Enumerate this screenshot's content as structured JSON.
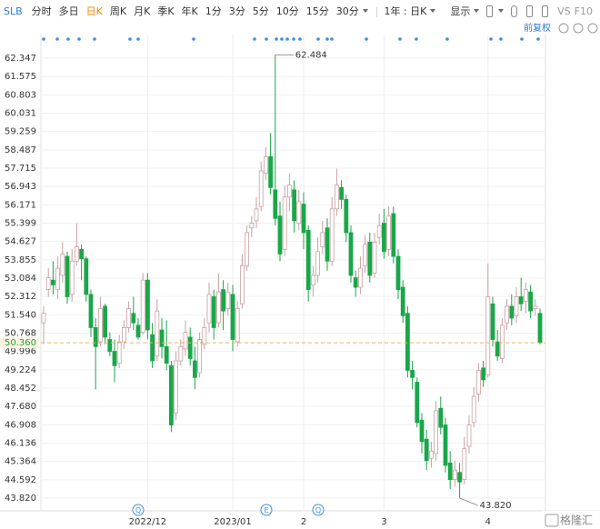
{
  "toolbar": {
    "symbol": "SLB",
    "tabs": [
      "分时",
      "多日",
      "日K",
      "周K",
      "月K",
      "季K",
      "年K",
      "1分",
      "3分",
      "5分",
      "10分",
      "15分",
      "30分"
    ],
    "range": "1年 : 日K",
    "display": "显示",
    "compare": "VS",
    "f10": "F10"
  },
  "watermark": "格隆汇",
  "chart_data": {
    "type": "candlestick",
    "adjust": "前复权",
    "x": [
      null,
      null,
      null,
      null,
      null,
      null,
      null,
      null,
      null,
      null,
      null,
      null,
      null,
      null,
      null,
      null,
      null,
      null,
      null,
      null,
      null,
      null,
      "2022/12",
      null,
      null,
      null,
      null,
      null,
      null,
      null,
      null,
      null,
      null,
      null,
      null,
      null,
      null,
      null,
      null,
      null,
      "2023/01",
      null,
      null,
      null,
      null,
      null,
      null,
      null,
      null,
      null,
      null,
      null,
      null,
      null,
      null,
      "2",
      null,
      null,
      null,
      null,
      null,
      null,
      null,
      null,
      null,
      null,
      null,
      null,
      null,
      null,
      null,
      null,
      "3",
      null,
      null,
      null,
      null,
      null,
      null,
      null,
      null,
      null,
      null,
      null,
      null,
      null,
      null,
      null,
      null,
      null,
      null,
      null,
      null,
      null,
      "4",
      null,
      null,
      null,
      null,
      null,
      null,
      null,
      null,
      null,
      null,
      null
    ],
    "open": [
      51.2,
      52.6,
      53.0,
      52.6,
      53.2,
      54.0,
      52.4,
      53.8,
      54.3,
      53.9,
      52.4,
      51.0,
      50.4,
      51.9,
      50.5,
      50.0,
      49.5,
      50.4,
      51.0,
      51.6,
      51.1,
      50.8,
      53.0,
      50.7,
      49.8,
      50.9,
      50.2,
      49.4,
      47.4,
      49.6,
      50.1,
      50.6,
      49.6,
      49.1,
      50.3,
      51.2,
      52.3,
      51.2,
      52.6,
      51.8,
      52.4,
      50.4,
      52.0,
      53.6,
      55.2,
      55.5,
      56.1,
      57.5,
      58.2,
      56.8,
      55.7,
      54.3,
      56.5,
      56.8,
      55.4,
      56.2,
      55.1,
      52.8,
      53.2,
      54.4,
      55.2,
      53.8,
      56.0,
      56.9,
      56.4,
      55.0,
      53.1,
      52.7,
      53.6,
      54.6,
      53.3,
      54.8,
      55.4,
      54.3,
      55.8,
      54.0,
      52.7,
      51.6,
      49.2,
      48.7,
      47.1,
      46.3,
      45.5,
      45.7,
      47.6,
      46.9,
      45.3,
      44.6,
      44.9,
      44.6,
      46.0,
      47.0,
      48.2,
      49.3,
      49.0,
      52.0,
      50.4,
      49.7,
      51.2,
      51.9,
      51.5,
      52.3,
      52.1,
      52.5,
      51.8,
      51.6
    ],
    "high": [
      51.9,
      53.5,
      53.8,
      54.0,
      54.6,
      54.2,
      54.3,
      55.4,
      54.5,
      54.0,
      52.6,
      51.4,
      52.3,
      52.0,
      50.8,
      50.5,
      50.7,
      51.3,
      52.1,
      52.3,
      51.4,
      53.3,
      53.3,
      51.2,
      52.2,
      51.4,
      51.3,
      49.6,
      50.0,
      50.5,
      51.3,
      51.0,
      50.2,
      50.8,
      51.4,
      52.9,
      52.6,
      53.3,
      53.0,
      52.9,
      52.8,
      52.1,
      54.1,
      55.3,
      55.7,
      56.5,
      58.0,
      58.6,
      59.2,
      62.484,
      56.3,
      57.0,
      57.5,
      57.2,
      56.8,
      56.7,
      55.3,
      53.6,
      54.8,
      55.5,
      55.6,
      56.5,
      57.7,
      57.2,
      56.6,
      55.3,
      53.4,
      54.0,
      54.9,
      55.0,
      55.0,
      55.8,
      56.0,
      56.1,
      56.1,
      54.3,
      53.0,
      51.9,
      49.6,
      48.9,
      47.4,
      46.7,
      46.2,
      47.9,
      48.1,
      47.2,
      45.8,
      45.4,
      45.3,
      46.4,
      47.3,
      48.5,
      49.5,
      49.6,
      53.7,
      52.3,
      50.9,
      51.4,
      52.2,
      52.4,
      52.7,
      53.1,
      52.9,
      52.8,
      52.2,
      51.8
    ],
    "low": [
      50.3,
      52.3,
      52.4,
      52.2,
      52.9,
      52.0,
      52.1,
      53.6,
      53.0,
      52.1,
      50.6,
      48.4,
      50.2,
      50.3,
      49.8,
      48.7,
      49.3,
      50.1,
      50.8,
      50.9,
      50.5,
      50.7,
      50.5,
      49.3,
      49.6,
      49.7,
      49.2,
      46.6,
      47.1,
      49.4,
      49.8,
      49.4,
      48.4,
      48.9,
      50.1,
      50.8,
      50.5,
      51.0,
      50.9,
      51.5,
      50.0,
      50.2,
      51.8,
      53.4,
      54.8,
      55.2,
      55.9,
      57.2,
      56.6,
      55.3,
      53.8,
      54.0,
      55.9,
      55.0,
      55.1,
      54.3,
      52.1,
      52.3,
      52.9,
      54.1,
      53.4,
      53.6,
      55.7,
      56.0,
      54.6,
      52.9,
      52.3,
      52.4,
      53.3,
      52.9,
      53.1,
      54.5,
      53.9,
      54.0,
      53.7,
      52.2,
      51.2,
      48.9,
      48.4,
      46.8,
      45.7,
      45.0,
      45.1,
      45.4,
      46.5,
      44.9,
      44.2,
      44.3,
      43.82,
      44.4,
      45.7,
      46.8,
      47.9,
      48.5,
      48.9,
      50.2,
      49.6,
      49.5,
      50.9,
      51.1,
      51.2,
      51.7,
      51.6,
      51.4,
      51.5,
      50.3
    ],
    "close": [
      51.6,
      53.1,
      52.8,
      53.5,
      54.1,
      52.3,
      53.8,
      54.4,
      53.9,
      52.4,
      51.0,
      50.2,
      51.8,
      50.6,
      50.0,
      49.4,
      50.4,
      51.0,
      51.8,
      51.2,
      50.6,
      53.0,
      50.9,
      49.6,
      51.7,
      50.2,
      49.5,
      46.9,
      49.6,
      50.2,
      50.8,
      49.7,
      48.9,
      50.5,
      51.0,
      52.4,
      51.0,
      52.5,
      51.7,
      52.5,
      50.5,
      51.8,
      53.6,
      55.0,
      55.4,
      56.0,
      57.6,
      58.2,
      56.9,
      55.6,
      54.1,
      56.5,
      57.0,
      55.5,
      56.3,
      55.0,
      52.6,
      53.2,
      54.2,
      55.0,
      53.8,
      56.0,
      57.0,
      56.4,
      55.0,
      53.2,
      52.7,
      53.5,
      54.5,
      53.2,
      54.6,
      55.3,
      54.2,
      55.7,
      54.0,
      52.6,
      51.5,
      49.2,
      48.9,
      47.0,
      46.2,
      45.4,
      45.8,
      47.5,
      46.8,
      45.2,
      44.6,
      45.0,
      44.5,
      45.9,
      46.9,
      48.1,
      49.2,
      48.8,
      52.3,
      50.5,
      49.8,
      51.1,
      51.9,
      51.4,
      52.3,
      52.0,
      52.6,
      51.7,
      51.9,
      50.36
    ],
    "up_color": "#c9a0a0",
    "down_color": "#1aa64a",
    "ylim": [
      43.82,
      62.347
    ],
    "yticks": [
      {
        "value": 43.82,
        "label": "43.820"
      },
      44.592,
      45.364,
      46.136,
      46.908,
      {
        "value": 47.68,
        "label": "47.680"
      },
      48.452,
      49.224,
      49.996,
      50.768,
      {
        "value": 51.54,
        "label": "51.540"
      },
      52.312,
      53.084,
      53.855,
      54.627,
      55.399,
      56.171,
      56.943,
      57.715,
      58.487,
      59.259,
      60.031,
      60.803,
      61.575,
      62.347
    ],
    "grid": true,
    "last_price": {
      "value": 50.36,
      "label": "50.360"
    },
    "high_label": 62.484,
    "low_label": {
      "value": 43.82,
      "label": "43.820"
    },
    "events": [
      "Q",
      "E",
      "Q"
    ]
  }
}
